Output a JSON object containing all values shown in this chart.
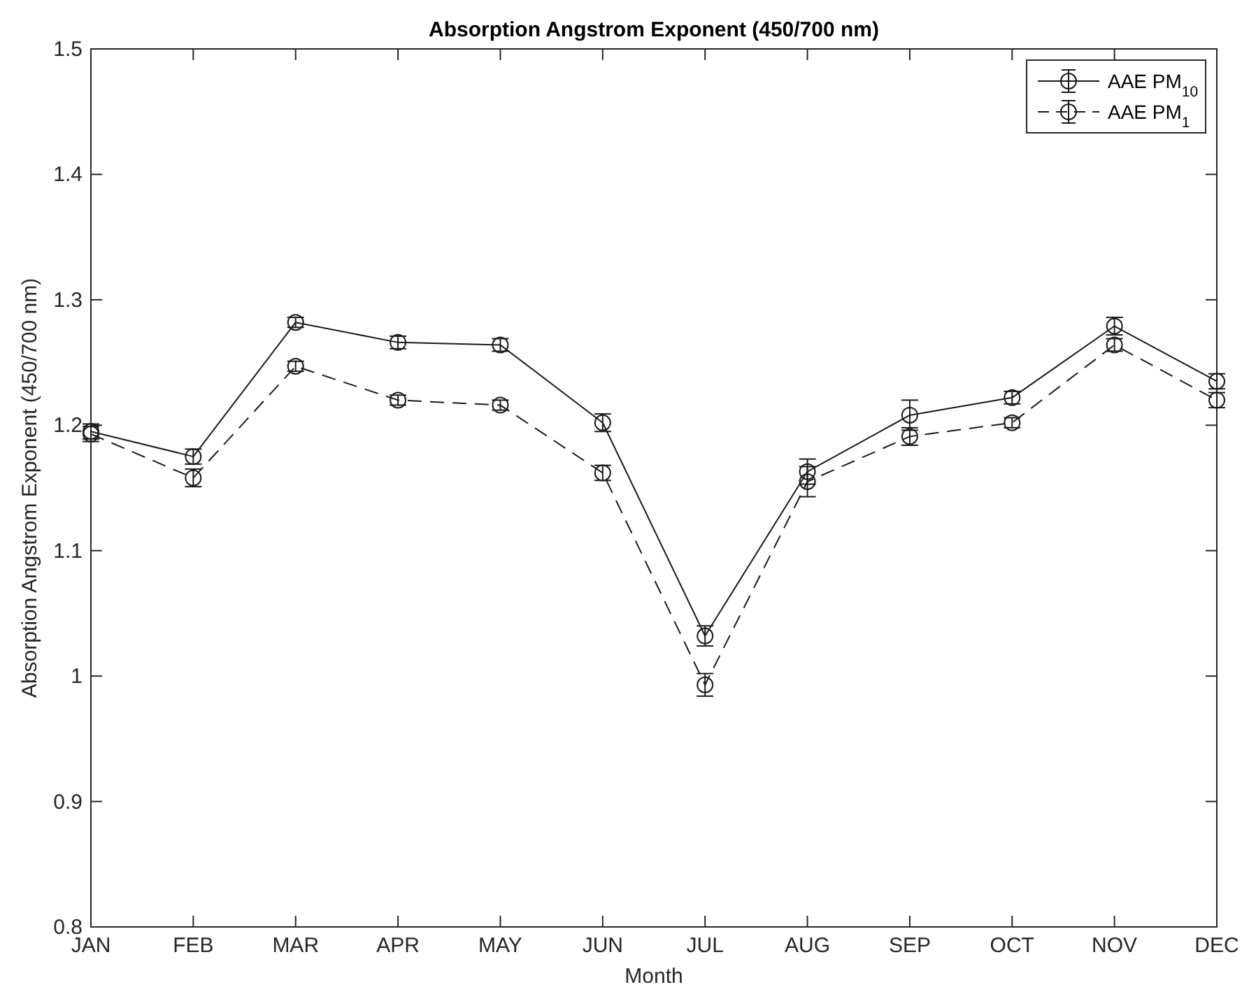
{
  "chart_data": {
    "type": "line",
    "title": "Absorption Angstrom Exponent (450/700 nm)",
    "xlabel": "Month",
    "ylabel": "Absorption Angstrom Exponent (450/700 nm)",
    "categories": [
      "JAN",
      "FEB",
      "MAR",
      "APR",
      "MAY",
      "JUN",
      "JUL",
      "AUG",
      "SEP",
      "OCT",
      "NOV",
      "DEC"
    ],
    "series": [
      {
        "name": "AAE PM$_{10}$",
        "color": "#1a1a1a",
        "line_style": "solid",
        "values": [
          1.195,
          1.175,
          1.282,
          1.266,
          1.264,
          1.202,
          1.032,
          1.163,
          1.208,
          1.222,
          1.279,
          1.235
        ],
        "errors": [
          0.006,
          0.006,
          0.004,
          0.005,
          0.005,
          0.007,
          0.008,
          0.01,
          0.012,
          0.005,
          0.007,
          0.006
        ]
      },
      {
        "name": "AAE PM$_{1}$",
        "color": "#1a1a1a",
        "line_style": "dashed",
        "values": [
          1.193,
          1.158,
          1.247,
          1.22,
          1.216,
          1.162,
          0.993,
          1.155,
          1.191,
          1.202,
          1.264,
          1.22
        ],
        "errors": [
          0.006,
          0.007,
          0.004,
          0.004,
          0.004,
          0.006,
          0.009,
          0.012,
          0.007,
          0.004,
          0.005,
          0.006
        ]
      }
    ],
    "ylim": [
      0.8,
      1.5
    ],
    "yticks": [
      0.8,
      0.9,
      1,
      1.1,
      1.2,
      1.3,
      1.4,
      1.5
    ],
    "marker": "circle",
    "grid": false,
    "legend": "top right"
  }
}
